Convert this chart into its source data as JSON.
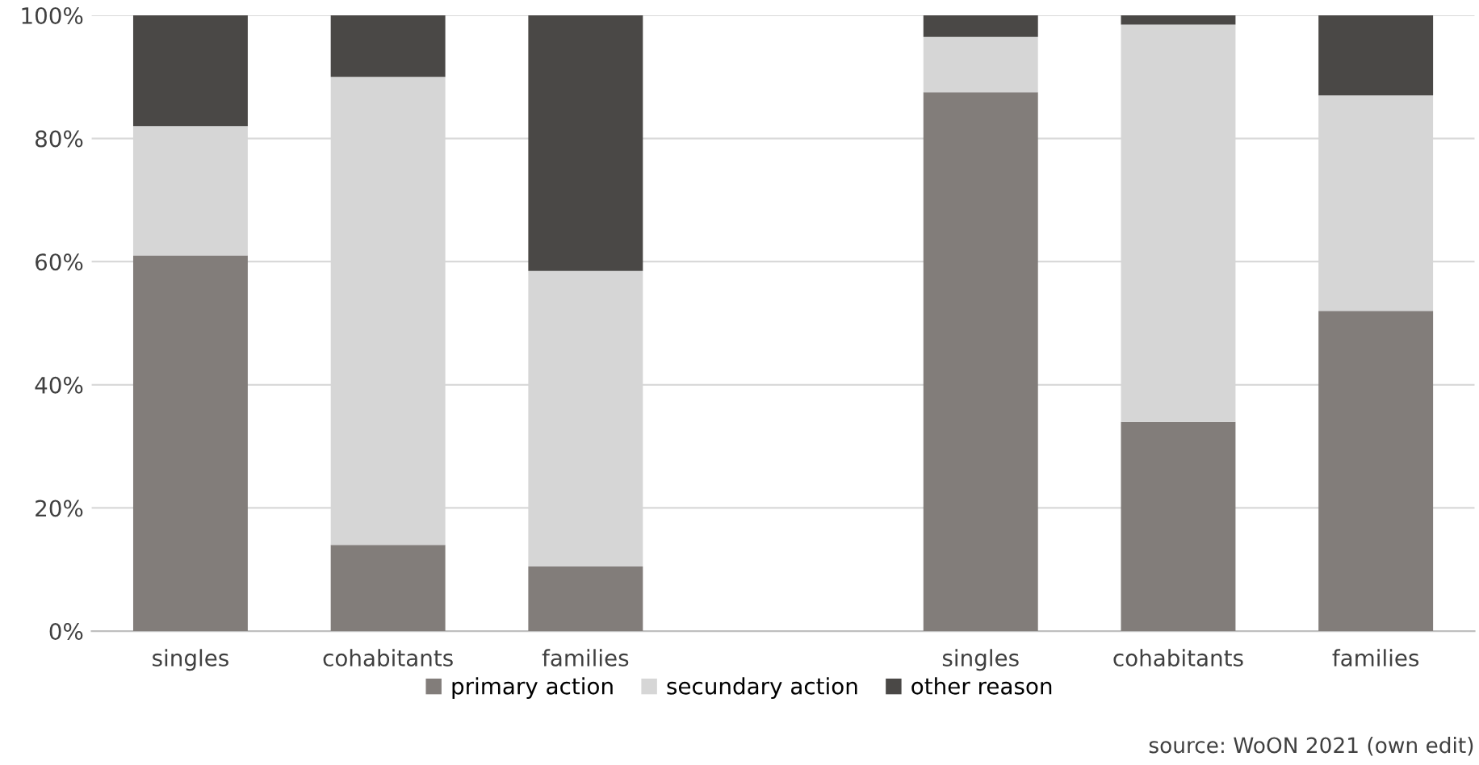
{
  "chart_data": {
    "type": "bar",
    "stacked": true,
    "categories": [
      "singles",
      "cohabitants",
      "families",
      null,
      "singles",
      "cohabitants",
      "families"
    ],
    "series": [
      {
        "name": "primary action",
        "color": "#827d7a",
        "values": [
          61,
          14,
          10.5,
          null,
          87.5,
          34,
          52
        ]
      },
      {
        "name": "secundary action",
        "color": "#d6d6d6",
        "values": [
          21,
          76,
          48,
          null,
          9,
          64.5,
          35
        ]
      },
      {
        "name": "other reason",
        "color": "#4a4846",
        "values": [
          18,
          10,
          41.5,
          null,
          3.5,
          1.5,
          13
        ]
      }
    ],
    "ylim": [
      0,
      100
    ],
    "yticks": [
      {
        "value": 0,
        "label": "0%"
      },
      {
        "value": 20,
        "label": "20%"
      },
      {
        "value": 40,
        "label": "40%"
      },
      {
        "value": 60,
        "label": "60%"
      },
      {
        "value": 80,
        "label": "80%"
      },
      {
        "value": 100,
        "label": "100%"
      }
    ],
    "grid": "y",
    "legend": "bottom",
    "annotations": [
      "source: WoON 2021 (own edit)"
    ]
  }
}
